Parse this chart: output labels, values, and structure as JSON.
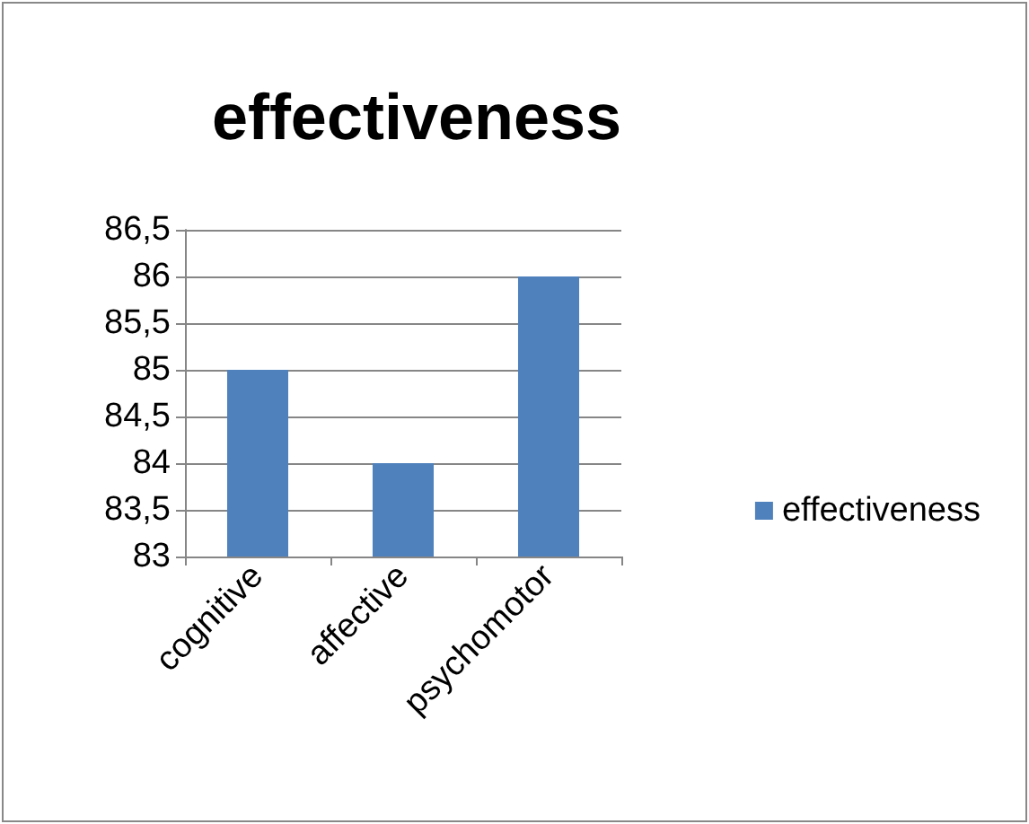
{
  "chart_data": {
    "type": "bar",
    "title": "effectiveness",
    "categories": [
      "cognitive",
      "affective",
      "psychomotor"
    ],
    "series": [
      {
        "name": "effectiveness",
        "color": "#4f81bd",
        "values": [
          85,
          84,
          86
        ]
      }
    ],
    "ylim": [
      83,
      86.5
    ],
    "yticks": [
      83,
      {
        "value": 83.5,
        "label": "83,5"
      },
      84,
      {
        "value": 84.5,
        "label": "84,5"
      },
      85,
      {
        "value": 85.5,
        "label": "85,5"
      },
      86,
      {
        "value": 86.5,
        "label": "86,5"
      }
    ],
    "grid": "y",
    "legend": "right"
  }
}
